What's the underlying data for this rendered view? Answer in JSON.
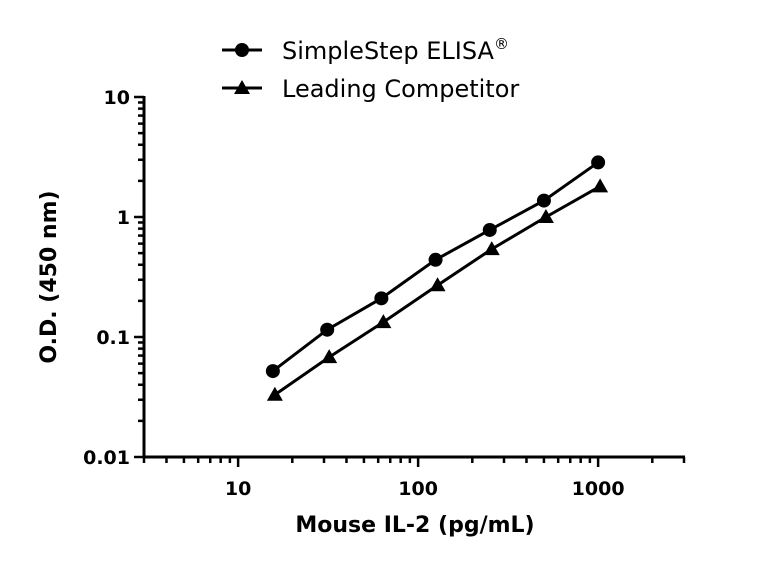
{
  "chart_data": {
    "type": "line",
    "xlabel": "Mouse IL-2 (pg/mL)",
    "ylabel": "O.D. (450 nm)",
    "xscale": "log",
    "yscale": "log",
    "xlim": [
      3,
      3000
    ],
    "ylim": [
      0.01,
      10
    ],
    "xticks": [
      "10",
      "100",
      "1000"
    ],
    "yticks": [
      "0.01",
      "0.1",
      "1",
      "10"
    ],
    "legend_position": "top",
    "grid": false,
    "series": [
      {
        "name": "SimpleStep ELISA",
        "name_sup": "®",
        "marker": "circle",
        "color": "#000000",
        "x": [
          15.6,
          31.25,
          62.5,
          125,
          250,
          500,
          1000
        ],
        "y": [
          0.052,
          0.115,
          0.21,
          0.44,
          0.78,
          1.37,
          2.85
        ]
      },
      {
        "name": "Leading Competitor",
        "marker": "triangle",
        "color": "#000000",
        "x": [
          15.6,
          31.25,
          62.5,
          125,
          250,
          500,
          1000
        ],
        "y": [
          0.033,
          0.068,
          0.133,
          0.27,
          0.54,
          1.0,
          1.8
        ]
      }
    ]
  }
}
